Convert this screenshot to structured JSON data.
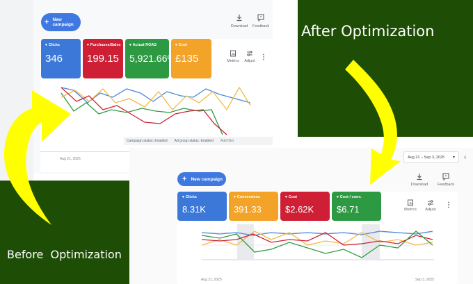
{
  "before": {
    "new_campaign": "New campaign",
    "tools": {
      "download": "Download",
      "feedback": "Feedback",
      "metrics": "Metrics",
      "adjust": "Adjust"
    },
    "cards": [
      {
        "label": "Clicks",
        "value": "346",
        "color": "#3c78d8"
      },
      {
        "label": "Purchases/Sales",
        "value": "199.15",
        "color": "#cf1f35"
      },
      {
        "label": "Actual ROAS",
        "value": "5,921.66%",
        "color": "#2d9a43"
      },
      {
        "label": "Cost",
        "value": "£135",
        "color": "#f4a329"
      }
    ],
    "date_label": "Aug 21, 2025",
    "filters": [
      "Campaign status: Enabled",
      "Ad group status: Enabled",
      "Add filter"
    ]
  },
  "after": {
    "date_range": "Aug 21 – Sep 3, 2025",
    "new_campaign": "New campaign",
    "tools": {
      "download": "Download",
      "feedback": "Feedback",
      "metrics": "Metrics",
      "adjust": "Adjust"
    },
    "cards": [
      {
        "label": "Clicks",
        "value": "8.31K",
        "color": "#3c78d8"
      },
      {
        "label": "Conversions",
        "value": "391.33",
        "color": "#f4a329"
      },
      {
        "label": "Cost",
        "value": "$2.62K",
        "color": "#cf1f35"
      },
      {
        "label": "Cost / conv.",
        "value": "$6.71",
        "color": "#2d9a43"
      }
    ],
    "x_start": "Aug 21, 2025",
    "x_end": "Sep 3, 2025"
  },
  "labels": {
    "after_optimization": "After Optimization",
    "before_optimization": "Before  Optimization"
  },
  "colors": {
    "dark_green": "#1e4d06",
    "yellow_arrow": "#ffff00",
    "blue": "#3c78d8",
    "red": "#cf1f35",
    "green": "#2d9a43",
    "orange": "#f4a329"
  }
}
